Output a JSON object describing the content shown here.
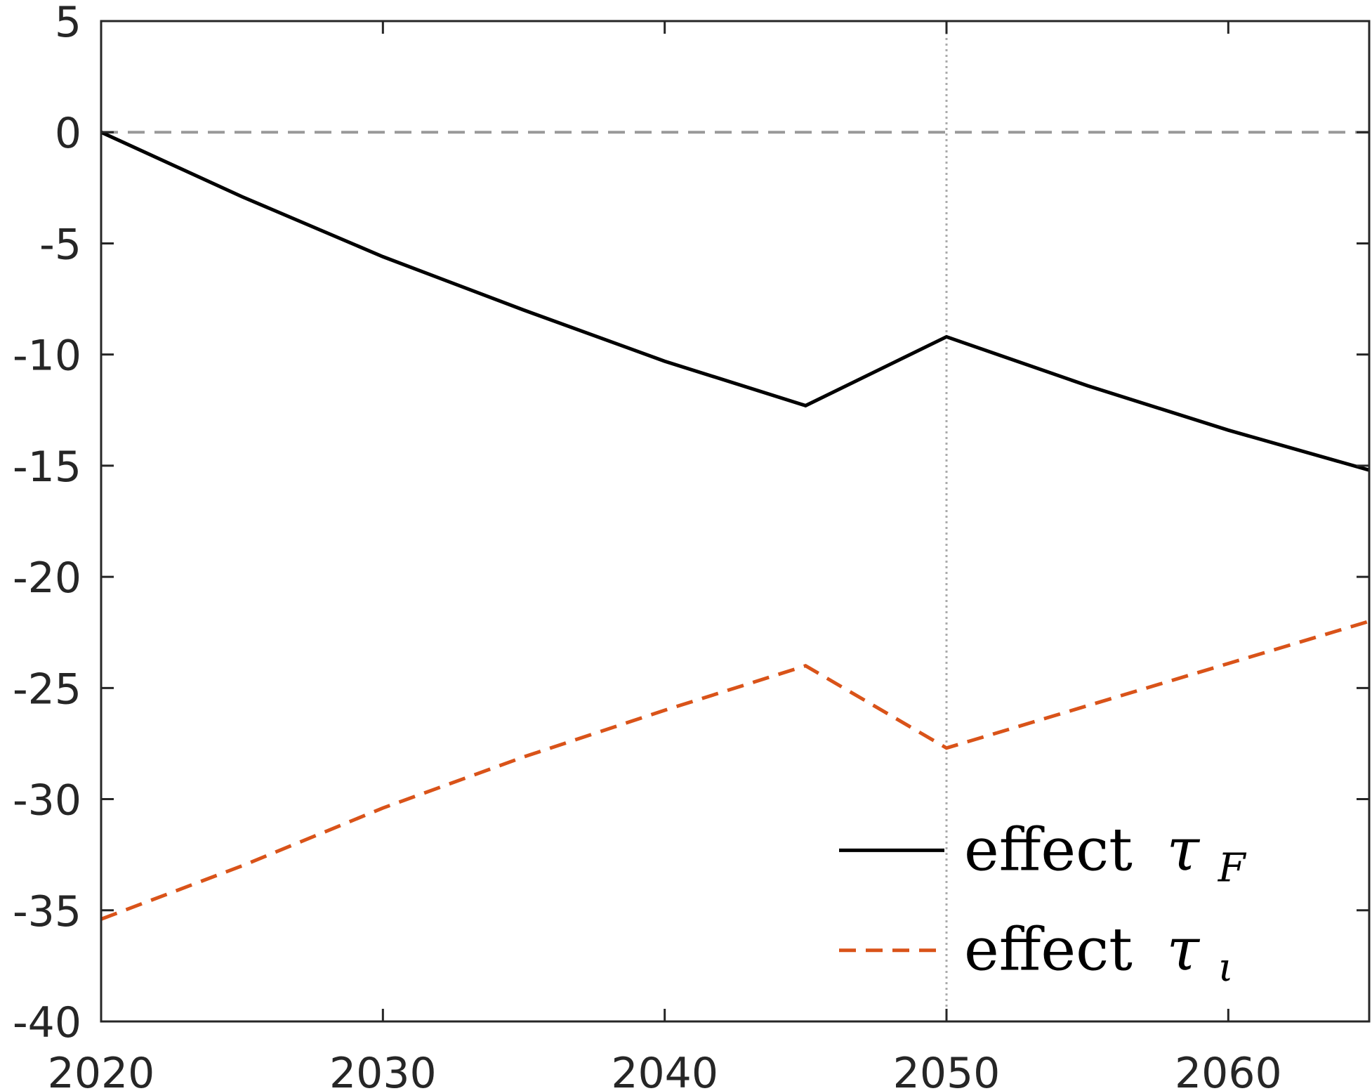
{
  "chart_data": {
    "type": "line",
    "title": "",
    "xlabel": "",
    "ylabel": "",
    "xlim": [
      2020,
      2065
    ],
    "ylim": [
      -40,
      5
    ],
    "xticks": [
      2020,
      2030,
      2040,
      2050,
      2060
    ],
    "yticks": [
      5,
      0,
      -5,
      -10,
      -15,
      -20,
      -25,
      -30,
      -35,
      -40
    ],
    "xtick_labels": [
      "2020",
      "2030",
      "2040",
      "2050",
      "2060"
    ],
    "ytick_labels": [
      "5",
      "0",
      "-5",
      "-10",
      "-15",
      "-20",
      "-25",
      "-30",
      "-35",
      "-40"
    ],
    "grid": false,
    "reference_lines": {
      "horizontal_zero": {
        "y": 0,
        "style": "dashed",
        "color": "#999999"
      },
      "vertical_2050": {
        "x": 2050,
        "style": "dotted",
        "color": "#aaaaaa"
      }
    },
    "legend_placement": "bottom-right",
    "series": [
      {
        "label_main": "effect",
        "label_symbol": "τ",
        "label_subscript": "F",
        "style": "solid",
        "color": "#000000",
        "x": [
          2020,
          2025,
          2030,
          2035,
          2040,
          2045,
          2050,
          2055,
          2060,
          2065
        ],
        "y": [
          0,
          -2.9,
          -5.6,
          -8.0,
          -10.3,
          -12.3,
          -9.2,
          -11.4,
          -13.4,
          -15.2
        ]
      },
      {
        "label_main": "effect",
        "label_symbol": "τ",
        "label_subscript": "ι",
        "style": "dashed",
        "color": "#d95319",
        "x": [
          2020,
          2025,
          2030,
          2035,
          2040,
          2045,
          2050,
          2055,
          2060,
          2065
        ],
        "y": [
          -35.4,
          -33.0,
          -30.4,
          -28.1,
          -26.0,
          -24.0,
          -27.7,
          -25.8,
          -23.9,
          -22.0
        ]
      }
    ]
  }
}
